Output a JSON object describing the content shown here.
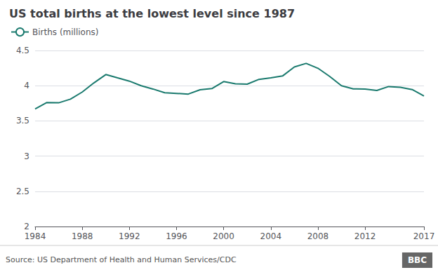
{
  "chart_data": {
    "type": "line",
    "title": "US total births at the lowest level since 1987",
    "annotations": [
      "Source: US Department of Health and Human Services/CDC",
      "BBC"
    ],
    "x": [
      1984,
      1985,
      1986,
      1987,
      1988,
      1989,
      1990,
      1991,
      1992,
      1993,
      1994,
      1995,
      1996,
      1997,
      1998,
      1999,
      2000,
      2001,
      2002,
      2003,
      2004,
      2005,
      2006,
      2007,
      2008,
      2009,
      2010,
      2011,
      2012,
      2013,
      2014,
      2015,
      2016,
      2017
    ],
    "series": [
      {
        "name": "Births (millions)",
        "color": "#1a7a6e",
        "values": [
          3.669,
          3.761,
          3.757,
          3.809,
          3.91,
          4.041,
          4.158,
          4.111,
          4.065,
          4.0,
          3.953,
          3.9,
          3.891,
          3.881,
          3.942,
          3.959,
          4.059,
          4.026,
          4.022,
          4.09,
          4.112,
          4.138,
          4.266,
          4.317,
          4.248,
          4.131,
          3.999,
          3.954,
          3.953,
          3.932,
          3.988,
          3.978,
          3.945,
          3.853
        ]
      }
    ],
    "xlim": [
      1984,
      2017
    ],
    "xticks": [
      1984,
      1988,
      1992,
      1996,
      2000,
      2004,
      2008,
      2012,
      2017
    ],
    "ylim": [
      2,
      4.5
    ],
    "yticks": [
      2,
      2.5,
      3,
      3.5,
      4,
      4.5
    ],
    "grid": true,
    "legend": "upper left"
  }
}
